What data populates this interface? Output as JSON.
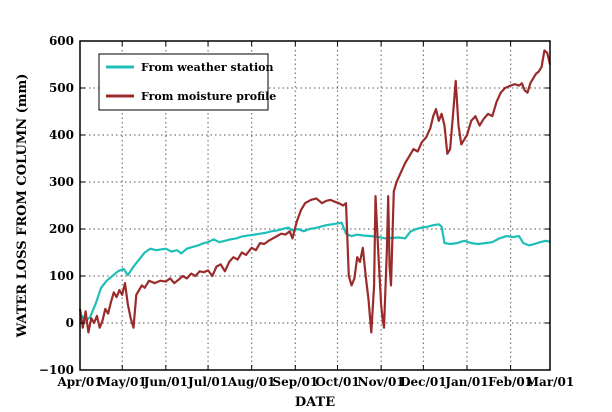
{
  "chart_data": {
    "type": "line",
    "title": "",
    "xlabel": "DATE",
    "ylabel": "WATER LOSS FROM COLUMN (mm)",
    "xlim": [
      "2000-04-01",
      "2001-03-01"
    ],
    "ylim": [
      -100,
      600
    ],
    "x_ticks": [
      {
        "date": "2000-04-01",
        "label": "Apr/01"
      },
      {
        "date": "2000-05-01",
        "label": "May/01"
      },
      {
        "date": "2000-06-01",
        "label": "Jun/01"
      },
      {
        "date": "2000-07-01",
        "label": "Jul/01"
      },
      {
        "date": "2000-08-01",
        "label": "Aug/01"
      },
      {
        "date": "2000-09-01",
        "label": "Sep/01"
      },
      {
        "date": "2000-10-01",
        "label": "Oct/01"
      },
      {
        "date": "2000-11-01",
        "label": "Nov/01"
      },
      {
        "date": "2000-12-01",
        "label": "Dec/01"
      },
      {
        "date": "2001-01-01",
        "label": "Jan/01"
      },
      {
        "date": "2001-02-01",
        "label": "Feb/01"
      },
      {
        "date": "2001-03-01",
        "label": "Mar/01"
      }
    ],
    "y_ticks": [
      {
        "value": -100,
        "label": "−100"
      },
      {
        "value": 0,
        "label": "0"
      },
      {
        "value": 100,
        "label": "100"
      },
      {
        "value": 200,
        "label": "200"
      },
      {
        "value": 300,
        "label": "300"
      },
      {
        "value": 400,
        "label": "400"
      },
      {
        "value": 500,
        "label": "500"
      },
      {
        "value": 600,
        "label": "600"
      }
    ],
    "grid": true,
    "legend_position": "top-left",
    "series": [
      {
        "name": "From weather station",
        "color": "#1fbfb8",
        "points": [
          [
            "2000-04-01",
            20
          ],
          [
            "2000-04-05",
            5
          ],
          [
            "2000-04-08",
            12
          ],
          [
            "2000-04-12",
            40
          ],
          [
            "2000-04-16",
            75
          ],
          [
            "2000-04-20",
            90
          ],
          [
            "2000-04-24",
            100
          ],
          [
            "2000-04-28",
            110
          ],
          [
            "2000-05-02",
            115
          ],
          [
            "2000-05-05",
            102
          ],
          [
            "2000-05-09",
            120
          ],
          [
            "2000-05-13",
            135
          ],
          [
            "2000-05-17",
            150
          ],
          [
            "2000-05-21",
            158
          ],
          [
            "2000-05-25",
            155
          ],
          [
            "2000-06-01",
            158
          ],
          [
            "2000-06-05",
            152
          ],
          [
            "2000-06-09",
            155
          ],
          [
            "2000-06-12",
            148
          ],
          [
            "2000-06-16",
            158
          ],
          [
            "2000-06-20",
            162
          ],
          [
            "2000-06-24",
            165
          ],
          [
            "2000-06-28",
            170
          ],
          [
            "2000-07-01",
            172
          ],
          [
            "2000-07-05",
            178
          ],
          [
            "2000-07-09",
            172
          ],
          [
            "2000-07-13",
            175
          ],
          [
            "2000-07-17",
            178
          ],
          [
            "2000-07-21",
            180
          ],
          [
            "2000-07-25",
            184
          ],
          [
            "2000-07-29",
            186
          ],
          [
            "2000-08-03",
            188
          ],
          [
            "2000-08-07",
            190
          ],
          [
            "2000-08-11",
            192
          ],
          [
            "2000-08-15",
            195
          ],
          [
            "2000-08-19",
            197
          ],
          [
            "2000-08-23",
            200
          ],
          [
            "2000-08-27",
            203
          ],
          [
            "2000-08-30",
            197
          ],
          [
            "2000-09-03",
            200
          ],
          [
            "2000-09-07",
            195
          ],
          [
            "2000-09-11",
            200
          ],
          [
            "2000-09-15",
            202
          ],
          [
            "2000-09-19",
            205
          ],
          [
            "2000-09-23",
            208
          ],
          [
            "2000-09-27",
            210
          ],
          [
            "2000-10-01",
            212
          ],
          [
            "2000-10-04",
            213
          ],
          [
            "2000-10-07",
            190
          ],
          [
            "2000-10-11",
            185
          ],
          [
            "2000-10-15",
            188
          ],
          [
            "2000-10-20",
            186
          ],
          [
            "2000-10-25",
            185
          ],
          [
            "2000-10-30",
            183
          ],
          [
            "2000-11-04",
            180
          ],
          [
            "2000-11-09",
            181
          ],
          [
            "2000-11-14",
            182
          ],
          [
            "2000-11-18",
            180
          ],
          [
            "2000-11-22",
            195
          ],
          [
            "2000-11-26",
            200
          ],
          [
            "2000-11-30",
            203
          ],
          [
            "2000-12-04",
            205
          ],
          [
            "2000-12-08",
            208
          ],
          [
            "2000-12-12",
            210
          ],
          [
            "2000-12-14",
            205
          ],
          [
            "2000-12-16",
            170
          ],
          [
            "2000-12-20",
            168
          ],
          [
            "2000-12-25",
            170
          ],
          [
            "2000-12-30",
            175
          ],
          [
            "2001-01-04",
            170
          ],
          [
            "2001-01-09",
            168
          ],
          [
            "2001-01-14",
            170
          ],
          [
            "2001-01-19",
            172
          ],
          [
            "2001-01-24",
            180
          ],
          [
            "2001-01-29",
            185
          ],
          [
            "2001-02-03",
            183
          ],
          [
            "2001-02-07",
            185
          ],
          [
            "2001-02-10",
            170
          ],
          [
            "2001-02-14",
            165
          ],
          [
            "2001-02-18",
            168
          ],
          [
            "2001-02-22",
            172
          ],
          [
            "2001-02-26",
            175
          ],
          [
            "2001-03-01",
            173
          ]
        ]
      },
      {
        "name": "From moisture profile",
        "color": "#9b2b2b",
        "points": [
          [
            "2000-04-01",
            30
          ],
          [
            "2000-04-03",
            -10
          ],
          [
            "2000-04-05",
            25
          ],
          [
            "2000-04-07",
            -20
          ],
          [
            "2000-04-09",
            10
          ],
          [
            "2000-04-11",
            0
          ],
          [
            "2000-04-13",
            15
          ],
          [
            "2000-04-15",
            -10
          ],
          [
            "2000-04-17",
            5
          ],
          [
            "2000-04-19",
            30
          ],
          [
            "2000-04-21",
            20
          ],
          [
            "2000-04-23",
            45
          ],
          [
            "2000-04-25",
            65
          ],
          [
            "2000-04-27",
            55
          ],
          [
            "2000-04-29",
            70
          ],
          [
            "2000-05-01",
            60
          ],
          [
            "2000-05-03",
            85
          ],
          [
            "2000-05-05",
            40
          ],
          [
            "2000-05-07",
            10
          ],
          [
            "2000-05-09",
            -10
          ],
          [
            "2000-05-11",
            60
          ],
          [
            "2000-05-13",
            70
          ],
          [
            "2000-05-15",
            80
          ],
          [
            "2000-05-17",
            75
          ],
          [
            "2000-05-20",
            90
          ],
          [
            "2000-05-24",
            85
          ],
          [
            "2000-05-28",
            90
          ],
          [
            "2000-06-01",
            88
          ],
          [
            "2000-06-04",
            95
          ],
          [
            "2000-06-07",
            85
          ],
          [
            "2000-06-10",
            92
          ],
          [
            "2000-06-13",
            100
          ],
          [
            "2000-06-16",
            95
          ],
          [
            "2000-06-19",
            105
          ],
          [
            "2000-06-22",
            100
          ],
          [
            "2000-06-25",
            110
          ],
          [
            "2000-06-28",
            108
          ],
          [
            "2000-07-01",
            112
          ],
          [
            "2000-07-04",
            100
          ],
          [
            "2000-07-07",
            120
          ],
          [
            "2000-07-10",
            125
          ],
          [
            "2000-07-13",
            110
          ],
          [
            "2000-07-16",
            130
          ],
          [
            "2000-07-19",
            140
          ],
          [
            "2000-07-22",
            135
          ],
          [
            "2000-07-25",
            150
          ],
          [
            "2000-07-28",
            145
          ],
          [
            "2000-08-01",
            160
          ],
          [
            "2000-08-04",
            155
          ],
          [
            "2000-08-07",
            170
          ],
          [
            "2000-08-10",
            168
          ],
          [
            "2000-08-13",
            175
          ],
          [
            "2000-08-16",
            180
          ],
          [
            "2000-08-19",
            185
          ],
          [
            "2000-08-22",
            190
          ],
          [
            "2000-08-25",
            188
          ],
          [
            "2000-08-28",
            195
          ],
          [
            "2000-08-30",
            180
          ],
          [
            "2000-09-02",
            215
          ],
          [
            "2000-09-05",
            240
          ],
          [
            "2000-09-08",
            255
          ],
          [
            "2000-09-12",
            262
          ],
          [
            "2000-09-16",
            265
          ],
          [
            "2000-09-20",
            255
          ],
          [
            "2000-09-23",
            260
          ],
          [
            "2000-09-26",
            262
          ],
          [
            "2000-09-29",
            258
          ],
          [
            "2000-10-02",
            255
          ],
          [
            "2000-10-05",
            250
          ],
          [
            "2000-10-07",
            255
          ],
          [
            "2000-10-09",
            100
          ],
          [
            "2000-10-11",
            80
          ],
          [
            "2000-10-13",
            95
          ],
          [
            "2000-10-15",
            140
          ],
          [
            "2000-10-17",
            130
          ],
          [
            "2000-10-19",
            160
          ],
          [
            "2000-10-21",
            100
          ],
          [
            "2000-10-23",
            50
          ],
          [
            "2000-10-25",
            -20
          ],
          [
            "2000-10-27",
            80
          ],
          [
            "2000-10-28",
            270
          ],
          [
            "2000-10-30",
            150
          ],
          [
            "2000-11-01",
            40
          ],
          [
            "2000-11-02",
            10
          ],
          [
            "2000-11-03",
            -10
          ],
          [
            "2000-11-05",
            150
          ],
          [
            "2000-11-06",
            270
          ],
          [
            "2000-11-07",
            120
          ],
          [
            "2000-11-08",
            80
          ],
          [
            "2000-11-10",
            280
          ],
          [
            "2000-11-12",
            300
          ],
          [
            "2000-11-15",
            320
          ],
          [
            "2000-11-18",
            340
          ],
          [
            "2000-11-21",
            355
          ],
          [
            "2000-11-24",
            370
          ],
          [
            "2000-11-27",
            365
          ],
          [
            "2000-11-30",
            385
          ],
          [
            "2000-12-03",
            395
          ],
          [
            "2000-12-06",
            415
          ],
          [
            "2000-12-08",
            440
          ],
          [
            "2000-12-10",
            455
          ],
          [
            "2000-12-12",
            430
          ],
          [
            "2000-12-14",
            445
          ],
          [
            "2000-12-16",
            420
          ],
          [
            "2000-12-18",
            360
          ],
          [
            "2000-12-20",
            370
          ],
          [
            "2000-12-22",
            440
          ],
          [
            "2000-12-24",
            515
          ],
          [
            "2000-12-26",
            420
          ],
          [
            "2000-12-28",
            380
          ],
          [
            "2001-01-01",
            400
          ],
          [
            "2001-01-04",
            430
          ],
          [
            "2001-01-07",
            440
          ],
          [
            "2001-01-10",
            420
          ],
          [
            "2001-01-13",
            435
          ],
          [
            "2001-01-16",
            445
          ],
          [
            "2001-01-19",
            440
          ],
          [
            "2001-01-22",
            470
          ],
          [
            "2001-01-25",
            490
          ],
          [
            "2001-01-28",
            500
          ],
          [
            "2001-02-01",
            505
          ],
          [
            "2001-02-04",
            508
          ],
          [
            "2001-02-07",
            505
          ],
          [
            "2001-02-09",
            510
          ],
          [
            "2001-02-11",
            495
          ],
          [
            "2001-02-13",
            490
          ],
          [
            "2001-02-15",
            510
          ],
          [
            "2001-02-17",
            520
          ],
          [
            "2001-02-19",
            530
          ],
          [
            "2001-02-21",
            535
          ],
          [
            "2001-02-23",
            545
          ],
          [
            "2001-02-25",
            580
          ],
          [
            "2001-02-27",
            575
          ],
          [
            "2001-03-01",
            550
          ]
        ]
      }
    ]
  }
}
